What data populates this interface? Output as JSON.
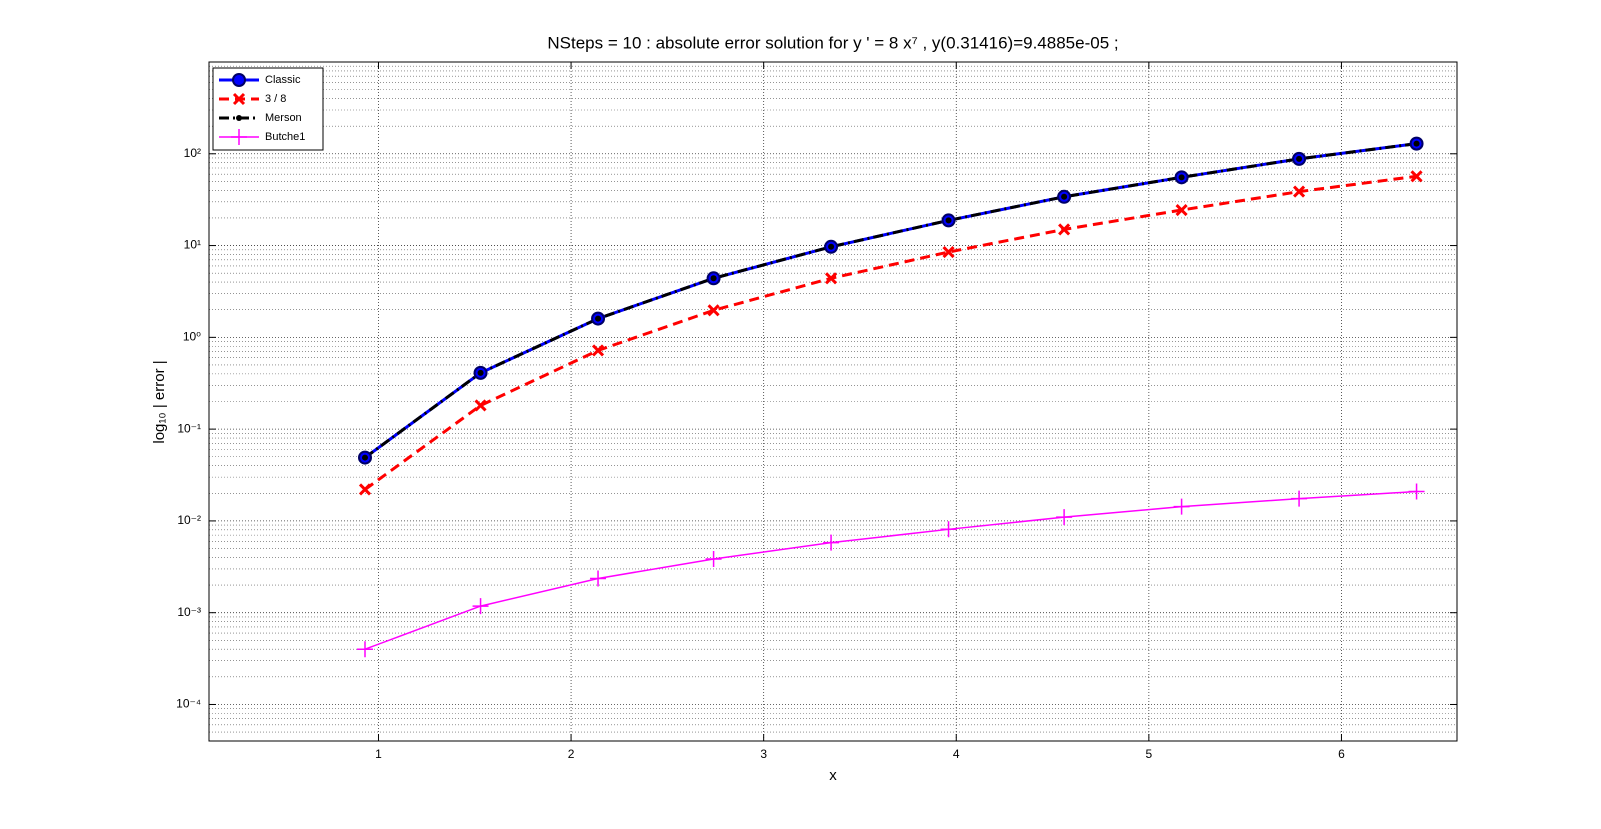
{
  "chart_data": {
    "type": "line",
    "title": "NSteps = 10 :      absolute error solution for    y ' = 8 x⁷ ,    y(0.31416)=9.4885e-05 ;",
    "x_label": "x",
    "y_label": "log₁₀ | error |",
    "x": [
      0.93,
      1.53,
      2.14,
      2.74,
      3.35,
      3.96,
      4.56,
      5.17,
      5.78,
      6.39
    ],
    "series": [
      {
        "name": "Classic",
        "color": "#0000ff",
        "marker": "circle",
        "dash": "solid",
        "values": [
          0.049,
          0.41,
          1.6,
          4.4,
          9.7,
          18.8,
          34,
          55.4,
          88,
          129
        ]
      },
      {
        "name": "3 / 8",
        "color": "#ff0000",
        "marker": "x",
        "dash": "dashed",
        "values": [
          0.022,
          0.181,
          0.72,
          1.97,
          4.4,
          8.5,
          15,
          24.4,
          38.7,
          56.9
        ]
      },
      {
        "name": "Merson",
        "color": "#000000",
        "marker": "dot",
        "dash": "dashdot",
        "values": [
          0.049,
          0.41,
          1.6,
          4.4,
          9.7,
          18.8,
          34,
          55.4,
          88,
          129
        ]
      },
      {
        "name": "Butche1",
        "color": "#ff00ff",
        "marker": "plus",
        "dash": "solid",
        "values": [
          0.0004,
          0.00118,
          0.00236,
          0.00385,
          0.0058,
          0.0081,
          0.011,
          0.0143,
          0.0175,
          0.0209
        ]
      }
    ],
    "xlim": [
      0.12,
      6.6
    ],
    "xticks": [
      1,
      2,
      3,
      4,
      5,
      6
    ],
    "ylim": [
      4e-05,
      1000
    ],
    "yticks": [
      {
        "value": 0.0001,
        "label": "10⁻⁴"
      },
      {
        "value": 0.001,
        "label": "10⁻³"
      },
      {
        "value": 0.01,
        "label": "10⁻²"
      },
      {
        "value": 0.1,
        "label": "10⁻¹"
      },
      {
        "value": 1,
        "label": "10⁰"
      },
      {
        "value": 10,
        "label": "10¹"
      },
      {
        "value": 100,
        "label": "10²"
      }
    ],
    "y_scale": "log",
    "grid": true,
    "minor_grid": true,
    "legend_position": "upper left"
  }
}
